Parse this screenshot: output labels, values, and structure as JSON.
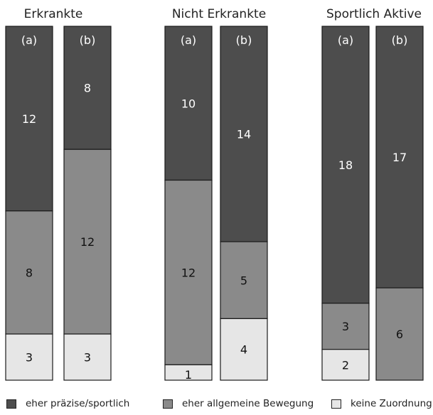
{
  "chart_data": {
    "type": "bar",
    "stacked": true,
    "groups": [
      {
        "title": "Erkrankte",
        "bars": [
          {
            "label": "(a)",
            "values": [
              12,
              8,
              3
            ]
          },
          {
            "label": "(b)",
            "values": [
              8,
              12,
              3
            ]
          }
        ]
      },
      {
        "title": "Nicht Erkrankte",
        "bars": [
          {
            "label": "(a)",
            "values": [
              10,
              12,
              1
            ]
          },
          {
            "label": "(b)",
            "values": [
              14,
              5,
              4
            ]
          }
        ]
      },
      {
        "title": "Sportlich Aktive",
        "bars": [
          {
            "label": "(a)",
            "values": [
              18,
              3,
              2
            ]
          },
          {
            "label": "(b)",
            "values": [
              17,
              6,
              0
            ]
          }
        ]
      }
    ],
    "series": [
      {
        "name": "eher präzise/sportlich",
        "color": "#4d4d4d"
      },
      {
        "name": "eher allgemeine Bewegung",
        "color": "#8a8a8a"
      },
      {
        "name": "keine Zuordnung",
        "color": "#e6e6e6"
      }
    ],
    "bar_total": 23,
    "legend_position": "bottom"
  }
}
